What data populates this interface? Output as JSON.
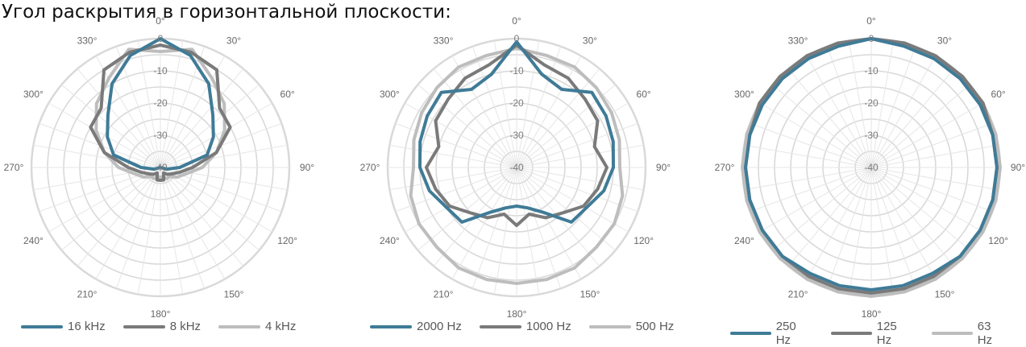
{
  "title": "Угол раскрытия в горизонтальной плоскости:",
  "colors": {
    "dark_blue": "#3f7b97",
    "dark_gray": "#7a7a7a",
    "light_gray": "#bdbdbd",
    "grid": "#d9d9d9"
  },
  "chart_data": [
    {
      "type": "polar-line",
      "angle_ticks": [
        "0°",
        "30°",
        "60°",
        "90°",
        "120°",
        "150°",
        "180°",
        "210°",
        "240°",
        "270°",
        "300°",
        "330°"
      ],
      "radial_ticks": [
        0,
        -10,
        -20,
        -30,
        -40
      ],
      "rlim": [
        -40,
        0
      ],
      "angles": [
        0,
        15,
        30,
        45,
        60,
        75,
        90,
        105,
        120,
        135,
        150,
        165,
        180,
        195,
        210,
        225,
        240,
        255,
        270,
        285,
        300,
        315,
        330,
        345
      ],
      "series": [
        {
          "name": "16 kHz",
          "color": "#3f7b97",
          "values": [
            0,
            -4,
            -10,
            -17,
            -21,
            -25,
            -34,
            -38,
            -40,
            -40,
            -40,
            -40,
            -40,
            -40,
            -40,
            -40,
            -40,
            -38,
            -34,
            -25,
            -21,
            -17,
            -10,
            -4
          ]
        },
        {
          "name": "8 kHz",
          "color": "#7a7a7a",
          "values": [
            -2,
            -3,
            -5,
            -14,
            -15,
            -22,
            -30,
            -34,
            -36,
            -37,
            -38,
            -36,
            -36,
            -36,
            -38,
            -37,
            -36,
            -34,
            -30,
            -22,
            -15,
            -14,
            -5,
            -3
          ]
        },
        {
          "name": "4 kHz",
          "color": "#bdbdbd",
          "values": [
            -4,
            -2,
            -8,
            -12,
            -17,
            -22,
            -27,
            -32,
            -34,
            -36,
            -36,
            -37,
            -37,
            -37,
            -36,
            -36,
            -34,
            -32,
            -27,
            -22,
            -17,
            -12,
            -8,
            -2
          ]
        }
      ]
    },
    {
      "type": "polar-line",
      "angle_ticks": [
        "0°",
        "30°",
        "60°",
        "90°",
        "120°",
        "150°",
        "180°",
        "210°",
        "240°",
        "270°",
        "300°",
        "330°"
      ],
      "radial_ticks": [
        0,
        -10,
        -20,
        -30,
        -40
      ],
      "rlim": [
        -40,
        0
      ],
      "angles": [
        0,
        15,
        30,
        45,
        60,
        75,
        90,
        105,
        120,
        135,
        150,
        165,
        180,
        195,
        210,
        225,
        240,
        255,
        270,
        285,
        300,
        315,
        330,
        345
      ],
      "series": [
        {
          "name": "2000 Hz",
          "color": "#3f7b97",
          "values": [
            -1,
            -10,
            -12,
            -7,
            -8,
            -9,
            -10,
            -12,
            -15,
            -16,
            -24,
            -27,
            -28,
            -27,
            -24,
            -16,
            -15,
            -12,
            -10,
            -9,
            -8,
            -7,
            -12,
            -10
          ]
        },
        {
          "name": "1000 Hz",
          "color": "#7a7a7a",
          "values": [
            -2,
            -7,
            -8,
            -10,
            -11,
            -15,
            -12,
            -14,
            -16,
            -20,
            -22,
            -25,
            -22,
            -25,
            -22,
            -20,
            -16,
            -14,
            -12,
            -15,
            -11,
            -10,
            -8,
            -7
          ]
        },
        {
          "name": "500 Hz",
          "color": "#bdbdbd",
          "values": [
            -3,
            -4,
            -4,
            -5,
            -6,
            -7,
            -8,
            -6,
            -5,
            -5,
            -4,
            -4,
            -4,
            -4,
            -4,
            -5,
            -5,
            -6,
            -8,
            -7,
            -6,
            -5,
            -4,
            -4
          ]
        }
      ]
    },
    {
      "type": "polar-line",
      "angle_ticks": [
        "0°",
        "30°",
        "60°",
        "90°",
        "120°",
        "150°",
        "180°",
        "210°",
        "240°",
        "270°",
        "300°",
        "330°"
      ],
      "radial_ticks": [
        0,
        -10,
        -20,
        -30,
        -40
      ],
      "rlim": [
        -40,
        0
      ],
      "angles": [
        0,
        15,
        30,
        45,
        60,
        75,
        90,
        105,
        120,
        135,
        150,
        165,
        180,
        195,
        210,
        225,
        240,
        255,
        270,
        285,
        300,
        315,
        330,
        345
      ],
      "series": [
        {
          "name": "250 Hz",
          "color": "#3f7b97",
          "values": [
            0,
            -1,
            -1,
            -1,
            -1,
            -1,
            -1,
            -1,
            -1,
            -1,
            -2,
            -2,
            -2,
            -2,
            -2,
            -1,
            -1,
            -1,
            -1,
            -1,
            -1,
            -1,
            -1,
            -1
          ]
        },
        {
          "name": "125 Hz",
          "color": "#7a7a7a",
          "values": [
            0,
            0,
            0,
            0,
            0,
            -1,
            -1,
            -1,
            -1,
            -1,
            -1,
            -1,
            -1,
            -1,
            -1,
            -1,
            -1,
            -1,
            -1,
            -1,
            0,
            0,
            0,
            0
          ]
        },
        {
          "name": "63 Hz",
          "color": "#bdbdbd",
          "values": [
            0,
            0,
            0,
            0,
            0,
            0,
            0,
            0,
            0,
            0,
            0,
            0,
            0,
            0,
            0,
            0,
            0,
            0,
            0,
            0,
            0,
            0,
            0,
            0
          ]
        }
      ]
    }
  ]
}
